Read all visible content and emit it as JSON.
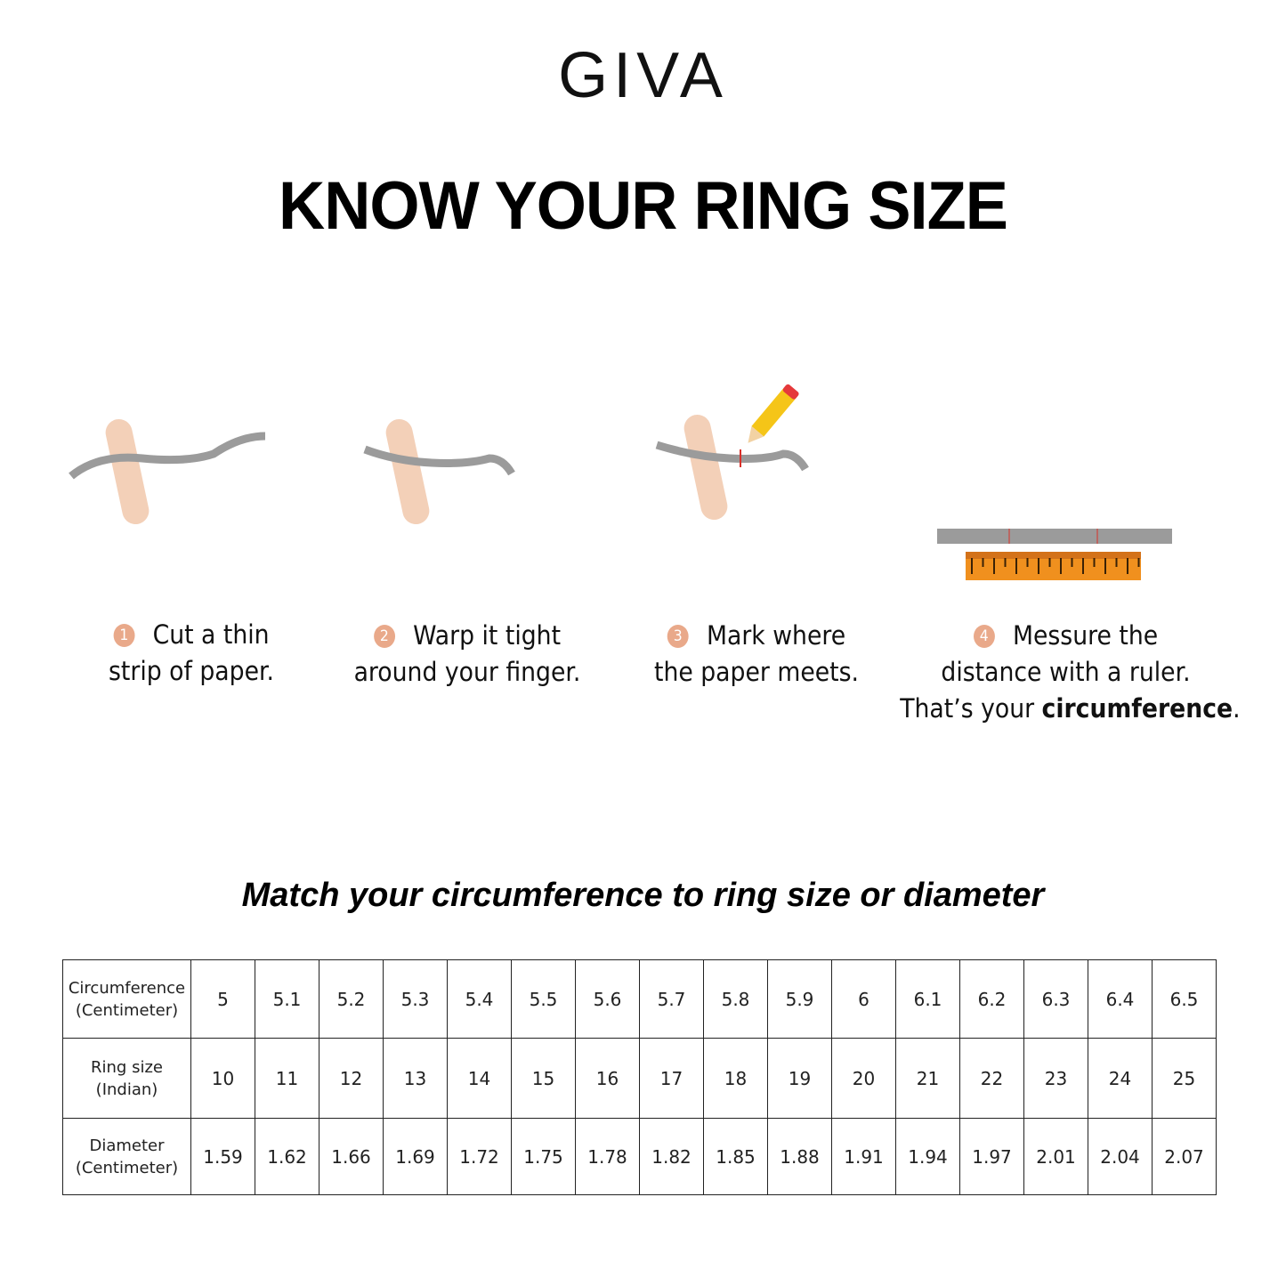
{
  "brand": {
    "logo": "GIVA"
  },
  "title": "KNOW YOUR RING SIZE",
  "steps": [
    {
      "number": "1",
      "line1": "Cut a thin",
      "line2": "strip of paper.",
      "icon": "hand-with-paper-strip-icon"
    },
    {
      "number": "2",
      "line1": "Warp it tight",
      "line2": "around your finger.",
      "icon": "hand-paper-wrapped-icon"
    },
    {
      "number": "3",
      "line1": "Mark where",
      "line2": "the paper meets.",
      "icon": "hand-pencil-mark-icon"
    },
    {
      "number": "4",
      "line1": "Messure the",
      "line2": "distance with a ruler.",
      "line3_pre": "That’s your ",
      "line3_bold": "circumference",
      "line3_post": ".",
      "icon": "ruler-icon"
    }
  ],
  "colors": {
    "skin": "#f3d0b8",
    "skin_shadow": "#e7b396",
    "paper": "#9b9b9b",
    "ruler": "#f0901e",
    "step_badge": "#e9a98a",
    "mark": "#d9302a"
  },
  "table": {
    "subtitle": "Match your circumference to ring size or diameter",
    "rows": [
      {
        "header": [
          "Circumference",
          "(Centimeter)"
        ],
        "values": [
          "5",
          "5.1",
          "5.2",
          "5.3",
          "5.4",
          "5.5",
          "5.6",
          "5.7",
          "5.8",
          "5.9",
          "6",
          "6.1",
          "6.2",
          "6.3",
          "6.4",
          "6.5"
        ]
      },
      {
        "header": [
          "Ring size",
          "(Indian)"
        ],
        "values": [
          "10",
          "11",
          "12",
          "13",
          "14",
          "15",
          "16",
          "17",
          "18",
          "19",
          "20",
          "21",
          "22",
          "23",
          "24",
          "25"
        ]
      },
      {
        "header": [
          "Diameter",
          "(Centimeter)"
        ],
        "values": [
          "1.59",
          "1.62",
          "1.66",
          "1.69",
          "1.72",
          "1.75",
          "1.78",
          "1.82",
          "1.85",
          "1.88",
          "1.91",
          "1.94",
          "1.97",
          "2.01",
          "2.04",
          "2.07"
        ]
      }
    ]
  }
}
